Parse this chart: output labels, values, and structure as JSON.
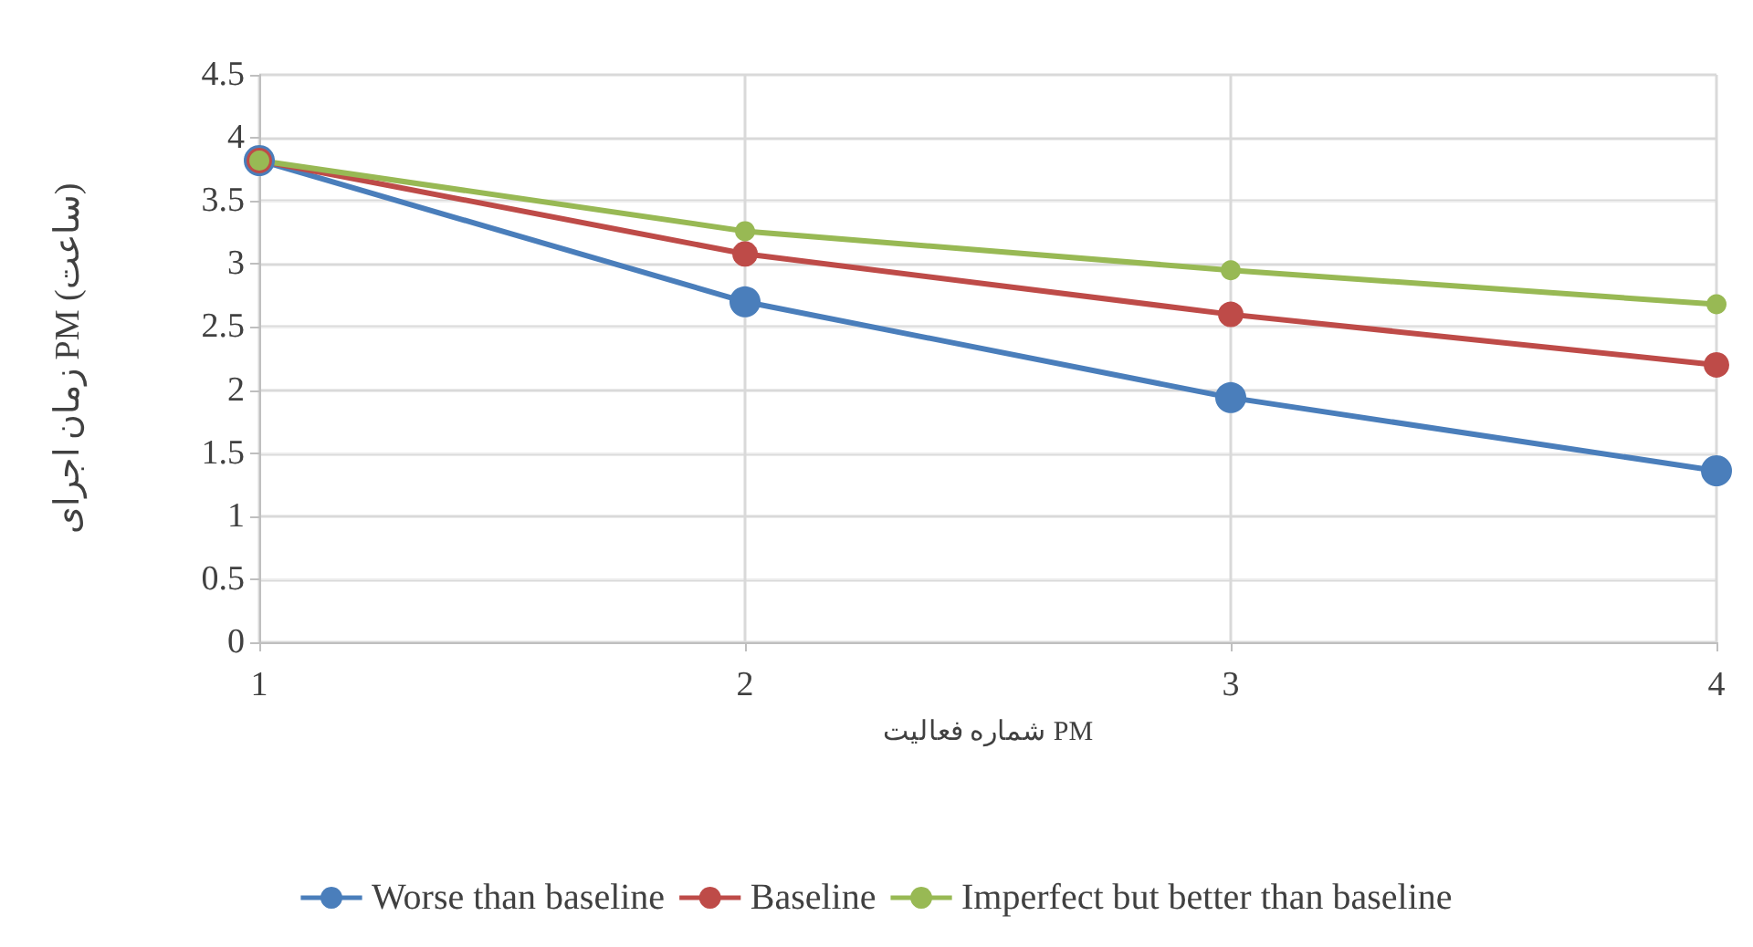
{
  "chart_data": {
    "type": "line",
    "xlabel": "شماره فعالیت PM",
    "ylabel": "زمان اجرای PM (ساعت)",
    "x": [
      1,
      2,
      3,
      4
    ],
    "series": [
      {
        "name": "Worse than baseline",
        "color": "#4a7ebb",
        "values": [
          3.82,
          2.7,
          1.94,
          1.36
        ]
      },
      {
        "name": "Baseline",
        "color": "#be4b48",
        "values": [
          3.82,
          3.08,
          2.6,
          2.2
        ]
      },
      {
        "name": "Imperfect but better than baseline",
        "color": "#98b954",
        "values": [
          3.82,
          3.26,
          2.95,
          2.68
        ]
      }
    ],
    "xlim": [
      1,
      4
    ],
    "xticks": [
      1,
      2,
      3,
      4
    ],
    "ylim": [
      0,
      4.5
    ],
    "yticks": [
      0,
      0.5,
      1,
      1.5,
      2,
      2.5,
      3,
      3.5,
      4,
      4.5
    ],
    "grid": true,
    "legend": "bottom",
    "marker": "circle",
    "line_style": "solid"
  }
}
